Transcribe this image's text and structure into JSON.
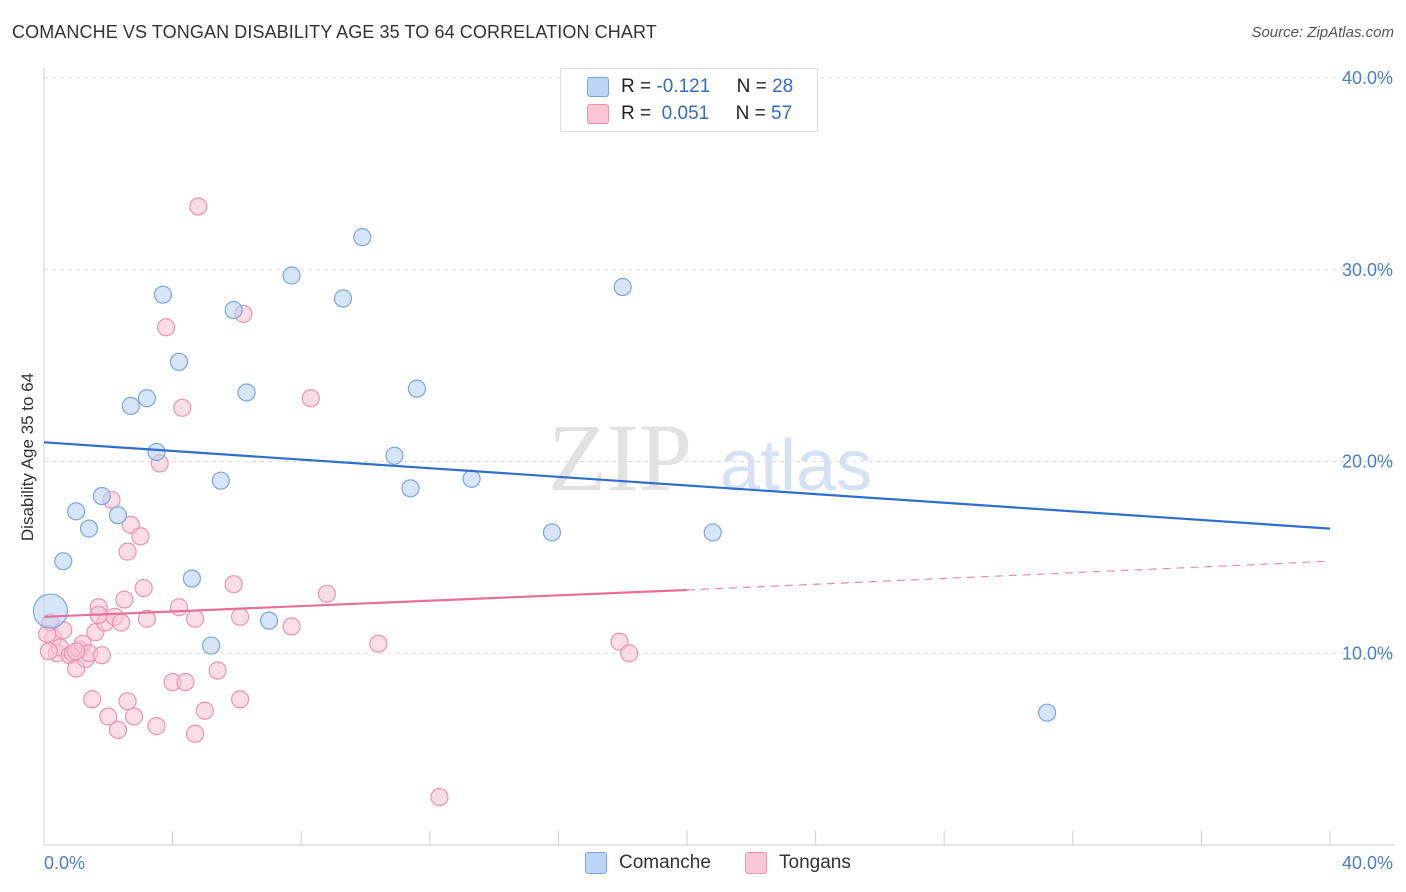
{
  "title": "COMANCHE VS TONGAN DISABILITY AGE 35 TO 64 CORRELATION CHART",
  "source": "Source: ZipAtlas.com",
  "watermark": {
    "zip": "ZIP",
    "atlas": "atlas"
  },
  "colors": {
    "comanche_fill": "#bcd4f5",
    "comanche_stroke": "#7aa6e2",
    "comanche_line": "#2e6fcd",
    "tongans_fill": "#f8c6d5",
    "tongans_stroke": "#ec93b0",
    "tongans_line": "#e76f98",
    "axis_text": "#4a7fc9",
    "grid": "#dddddd"
  },
  "legend": {
    "rows": [
      {
        "r_label": "R =",
        "r_value": "-0.121",
        "n_label": "N =",
        "n_value": "28"
      },
      {
        "r_label": "R =",
        "r_value": "0.051",
        "n_label": "N =",
        "n_value": "57"
      }
    ]
  },
  "bottom_legend": {
    "series1": "Comanche",
    "series2": "Tongans"
  },
  "chart_data": {
    "type": "scatter",
    "title": "COMANCHE VS TONGAN DISABILITY AGE 35 TO 64 CORRELATION CHART",
    "xlabel": "",
    "ylabel": "Disability Age 35 to 64",
    "xlim": [
      0,
      40
    ],
    "ylim": [
      0,
      40
    ],
    "x_tick_labels": [
      "0.0%",
      "40.0%"
    ],
    "y_ticks": [
      10,
      20,
      30,
      40
    ],
    "y_tick_labels": [
      "10.0%",
      "20.0%",
      "30.0%",
      "40.0%"
    ],
    "grid": "horizontal dashed",
    "legend_placement": "top-center",
    "series": [
      {
        "name": "Comanche",
        "r": -0.121,
        "n": 28,
        "trend": {
          "x": [
            0,
            40
          ],
          "y": [
            21.0,
            16.5
          ],
          "dashed_from": null
        },
        "points": [
          [
            0.2,
            12.2
          ],
          [
            0.6,
            14.8
          ],
          [
            1.0,
            17.4
          ],
          [
            1.4,
            16.5
          ],
          [
            1.8,
            18.2
          ],
          [
            2.3,
            17.2
          ],
          [
            2.7,
            22.9
          ],
          [
            3.2,
            23.3
          ],
          [
            3.5,
            20.5
          ],
          [
            3.7,
            28.7
          ],
          [
            4.2,
            25.2
          ],
          [
            4.6,
            13.9
          ],
          [
            5.2,
            10.4
          ],
          [
            5.5,
            19.0
          ],
          [
            5.9,
            27.9
          ],
          [
            6.3,
            23.6
          ],
          [
            7.0,
            11.7
          ],
          [
            7.7,
            29.7
          ],
          [
            9.3,
            28.5
          ],
          [
            9.9,
            31.7
          ],
          [
            10.9,
            20.3
          ],
          [
            11.4,
            18.6
          ],
          [
            11.6,
            23.8
          ],
          [
            13.3,
            19.1
          ],
          [
            15.8,
            16.3
          ],
          [
            18.0,
            29.1
          ],
          [
            20.8,
            16.3
          ],
          [
            31.2,
            6.9
          ]
        ]
      },
      {
        "name": "Tongans",
        "r": 0.051,
        "n": 57,
        "trend": {
          "x": [
            0,
            20,
            40
          ],
          "y": [
            11.9,
            13.3,
            14.8
          ],
          "dashed_from": 20
        },
        "points": [
          [
            0.2,
            11.6
          ],
          [
            0.3,
            10.8
          ],
          [
            0.4,
            10.0
          ],
          [
            0.5,
            10.3
          ],
          [
            0.6,
            11.2
          ],
          [
            0.8,
            9.9
          ],
          [
            0.9,
            10.0
          ],
          [
            1.0,
            9.2
          ],
          [
            1.1,
            10.2
          ],
          [
            1.2,
            10.5
          ],
          [
            1.3,
            9.7
          ],
          [
            1.4,
            10.0
          ],
          [
            1.5,
            7.6
          ],
          [
            1.6,
            11.1
          ],
          [
            1.7,
            12.4
          ],
          [
            1.8,
            9.9
          ],
          [
            1.9,
            11.6
          ],
          [
            2.0,
            6.7
          ],
          [
            2.1,
            18.0
          ],
          [
            2.2,
            11.9
          ],
          [
            2.3,
            6.0
          ],
          [
            2.4,
            11.6
          ],
          [
            2.5,
            12.8
          ],
          [
            2.6,
            15.3
          ],
          [
            2.6,
            7.5
          ],
          [
            2.7,
            16.7
          ],
          [
            2.8,
            6.7
          ],
          [
            3.0,
            16.1
          ],
          [
            3.1,
            13.4
          ],
          [
            3.2,
            11.8
          ],
          [
            3.5,
            6.2
          ],
          [
            3.6,
            19.9
          ],
          [
            3.8,
            27.0
          ],
          [
            4.0,
            8.5
          ],
          [
            4.2,
            12.4
          ],
          [
            4.3,
            22.8
          ],
          [
            4.4,
            8.5
          ],
          [
            4.7,
            11.8
          ],
          [
            4.7,
            5.8
          ],
          [
            4.8,
            33.3
          ],
          [
            5.0,
            7.0
          ],
          [
            5.4,
            9.1
          ],
          [
            5.9,
            13.6
          ],
          [
            6.1,
            7.6
          ],
          [
            6.1,
            11.9
          ],
          [
            6.2,
            27.7
          ],
          [
            7.7,
            11.4
          ],
          [
            8.3,
            23.3
          ],
          [
            8.8,
            13.1
          ],
          [
            10.4,
            10.5
          ],
          [
            12.3,
            2.5
          ],
          [
            17.9,
            10.6
          ],
          [
            18.2,
            10.0
          ],
          [
            0.1,
            11.0
          ],
          [
            0.15,
            10.1
          ],
          [
            1.0,
            10.1
          ],
          [
            1.7,
            12.0
          ]
        ]
      }
    ]
  }
}
